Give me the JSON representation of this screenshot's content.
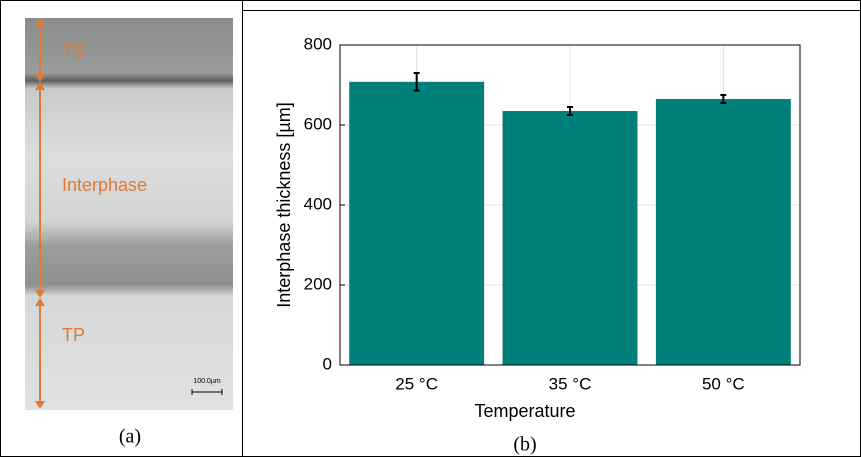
{
  "panel_a": {
    "labels": [
      "TS",
      "Interphase",
      "TP"
    ],
    "scale_bar": "100.0µm",
    "caption": "(a)"
  },
  "chart_data": {
    "type": "bar",
    "caption": "(b)",
    "x_label": "Temperature",
    "y_label": "Interphase thickness [µm]",
    "categories": [
      "25 °C",
      "35 °C",
      "50 °C"
    ],
    "values": [
      708,
      635,
      665
    ],
    "errors": [
      22,
      10,
      10
    ],
    "color": "#007f7b",
    "ylim": [
      0,
      800
    ],
    "yticks": [
      0,
      200,
      400,
      600,
      800
    ],
    "grid": true
  }
}
